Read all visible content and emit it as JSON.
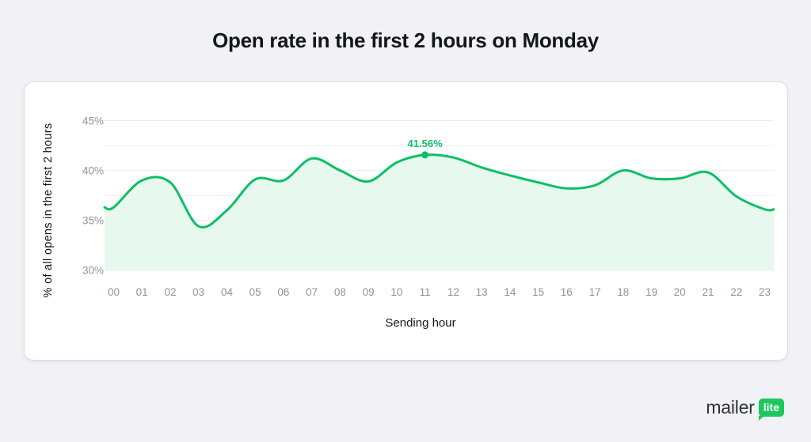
{
  "chart_data": {
    "type": "area",
    "title": "Open rate in the first 2 hours on Monday",
    "xlabel": "Sending hour",
    "ylabel": "% of all opens in the first 2 hours",
    "categories": [
      "00",
      "01",
      "02",
      "03",
      "04",
      "05",
      "06",
      "07",
      "08",
      "09",
      "10",
      "11",
      "12",
      "13",
      "14",
      "15",
      "16",
      "17",
      "18",
      "19",
      "20",
      "21",
      "22",
      "23"
    ],
    "values": [
      36.3,
      39.0,
      38.8,
      34.4,
      36.0,
      39.1,
      39.0,
      41.2,
      40.0,
      38.9,
      40.8,
      41.56,
      41.3,
      40.3,
      39.5,
      38.8,
      38.2,
      38.5,
      40.0,
      39.2,
      39.2,
      39.8,
      37.4,
      36.1
    ],
    "ylim": [
      30,
      45
    ],
    "yticks": [
      45,
      40,
      35,
      30
    ],
    "ytick_suffix": "%",
    "grid": true,
    "grid_step": 2.5,
    "legend": false,
    "area_baseline": 30,
    "annotation": {
      "index": 11,
      "category": "11",
      "value": 41.56,
      "label": "41.56%"
    },
    "colors": {
      "line": "#0dbf66",
      "fill": "#e7f8ee",
      "annotation": "#0dbf66",
      "tick_text": "#8f939c",
      "grid": "#ededf1"
    }
  },
  "logo": {
    "text": "mailer",
    "badge": "lite"
  },
  "colors": {
    "page_bg": "#f1f1f6",
    "card_bg": "#ffffff",
    "card_border": "#dddde3",
    "title_text": "#15161a",
    "axis_title": "#15161a",
    "logo_text": "#2d3339",
    "logo_badge_bg": "#1dc75e",
    "logo_badge_text": "#ffffff"
  }
}
